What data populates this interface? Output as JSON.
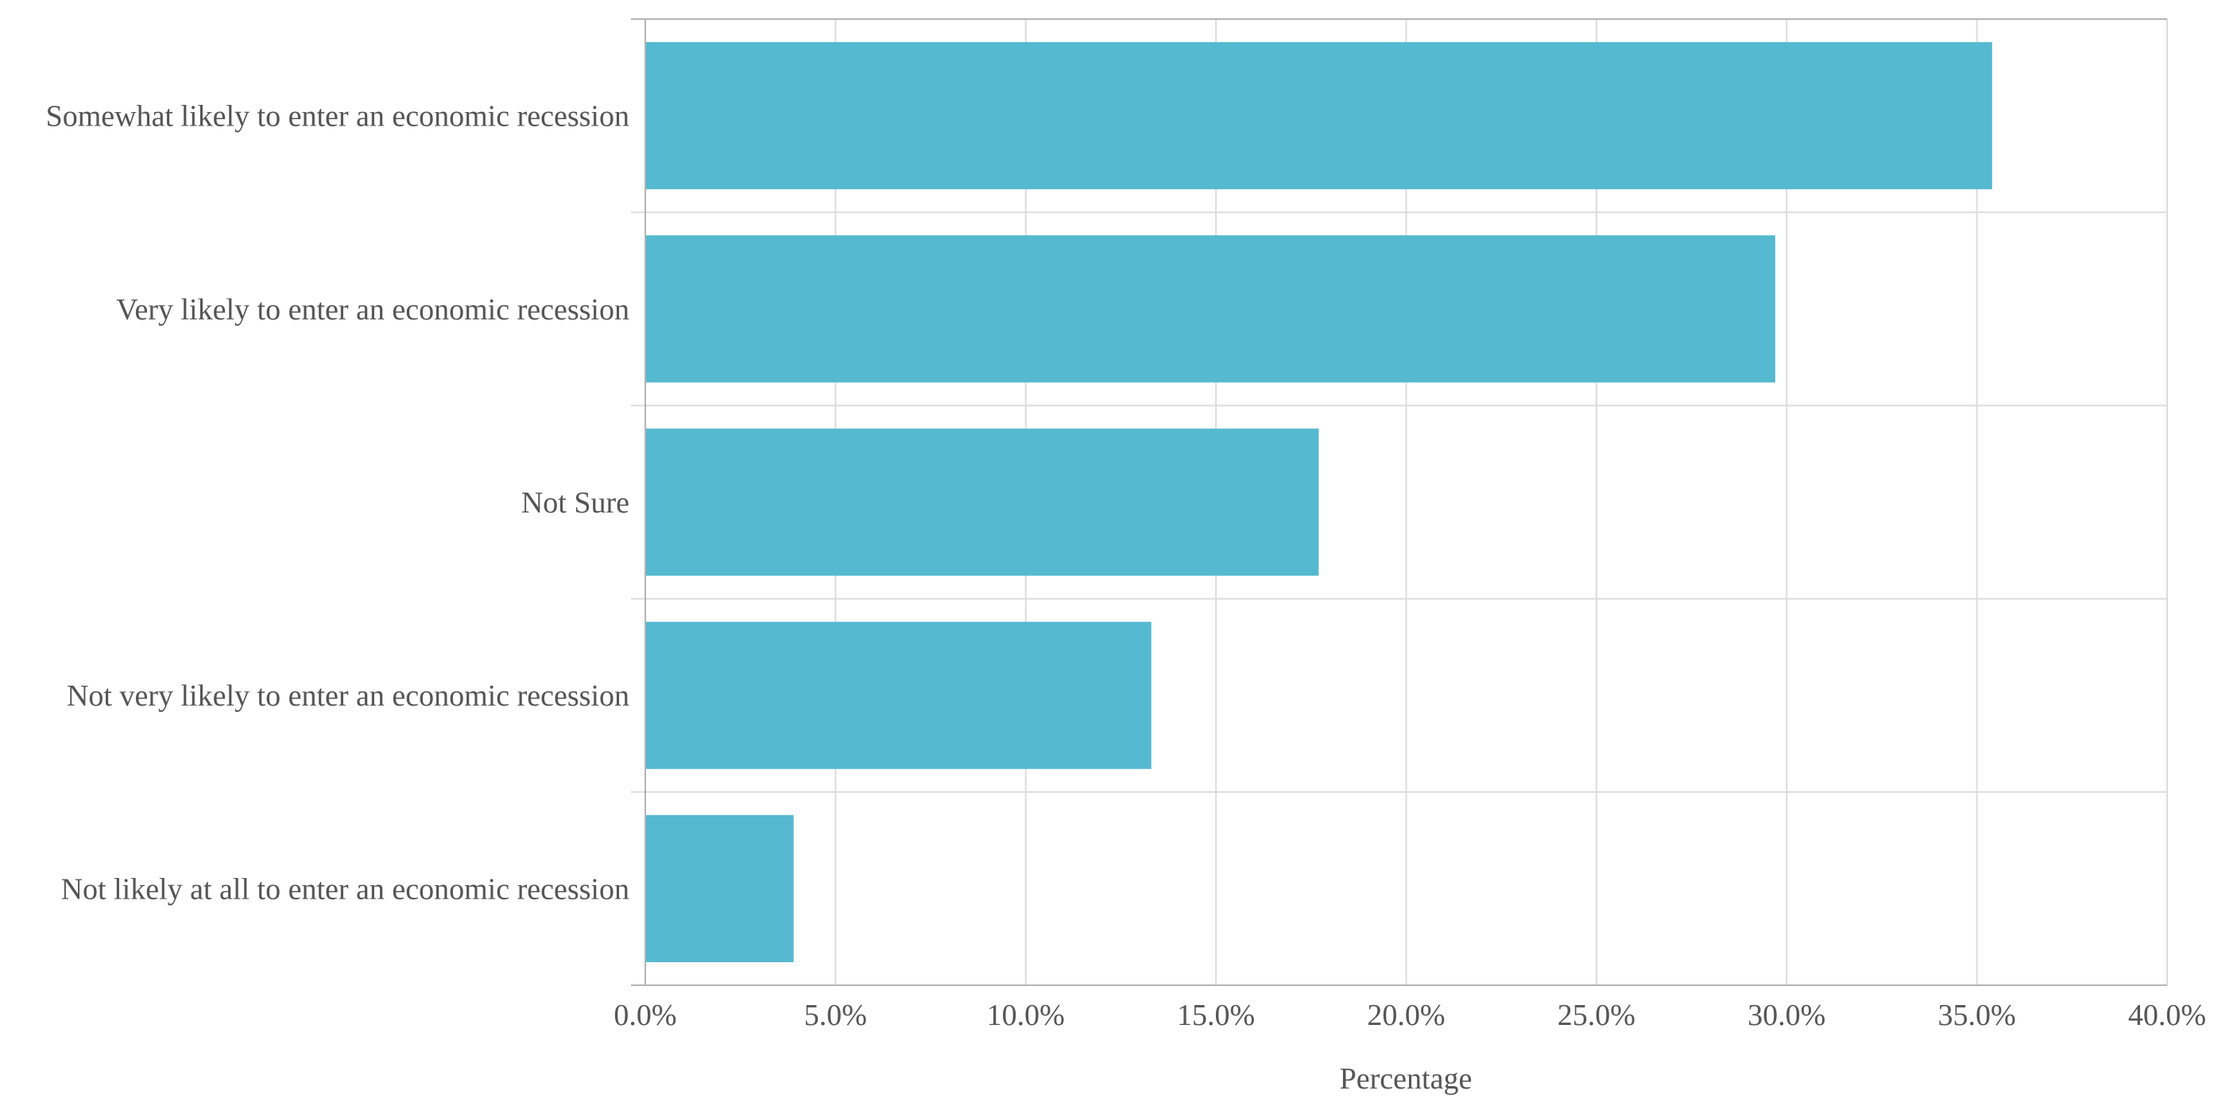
{
  "chart_data": {
    "type": "bar",
    "orientation": "horizontal",
    "categories": [
      "Somewhat likely to enter an economic recession",
      "Very likely to enter an economic recession",
      "Not Sure",
      "Not very likely to enter an economic recession",
      "Not likely at all to enter an economic recession"
    ],
    "values": [
      35.4,
      29.7,
      17.7,
      13.3,
      3.9
    ],
    "xlabel": "Percentage",
    "ylabel": "",
    "xlim": [
      0,
      40
    ],
    "x_ticks": [
      "0.0%",
      "5.0%",
      "10.0%",
      "15.0%",
      "20.0%",
      "25.0%",
      "30.0%",
      "35.0%",
      "40.0%"
    ],
    "x_tick_values": [
      0,
      5,
      10,
      15,
      20,
      25,
      30,
      35,
      40
    ],
    "bar_color": "#55b9cf",
    "grid": true
  }
}
